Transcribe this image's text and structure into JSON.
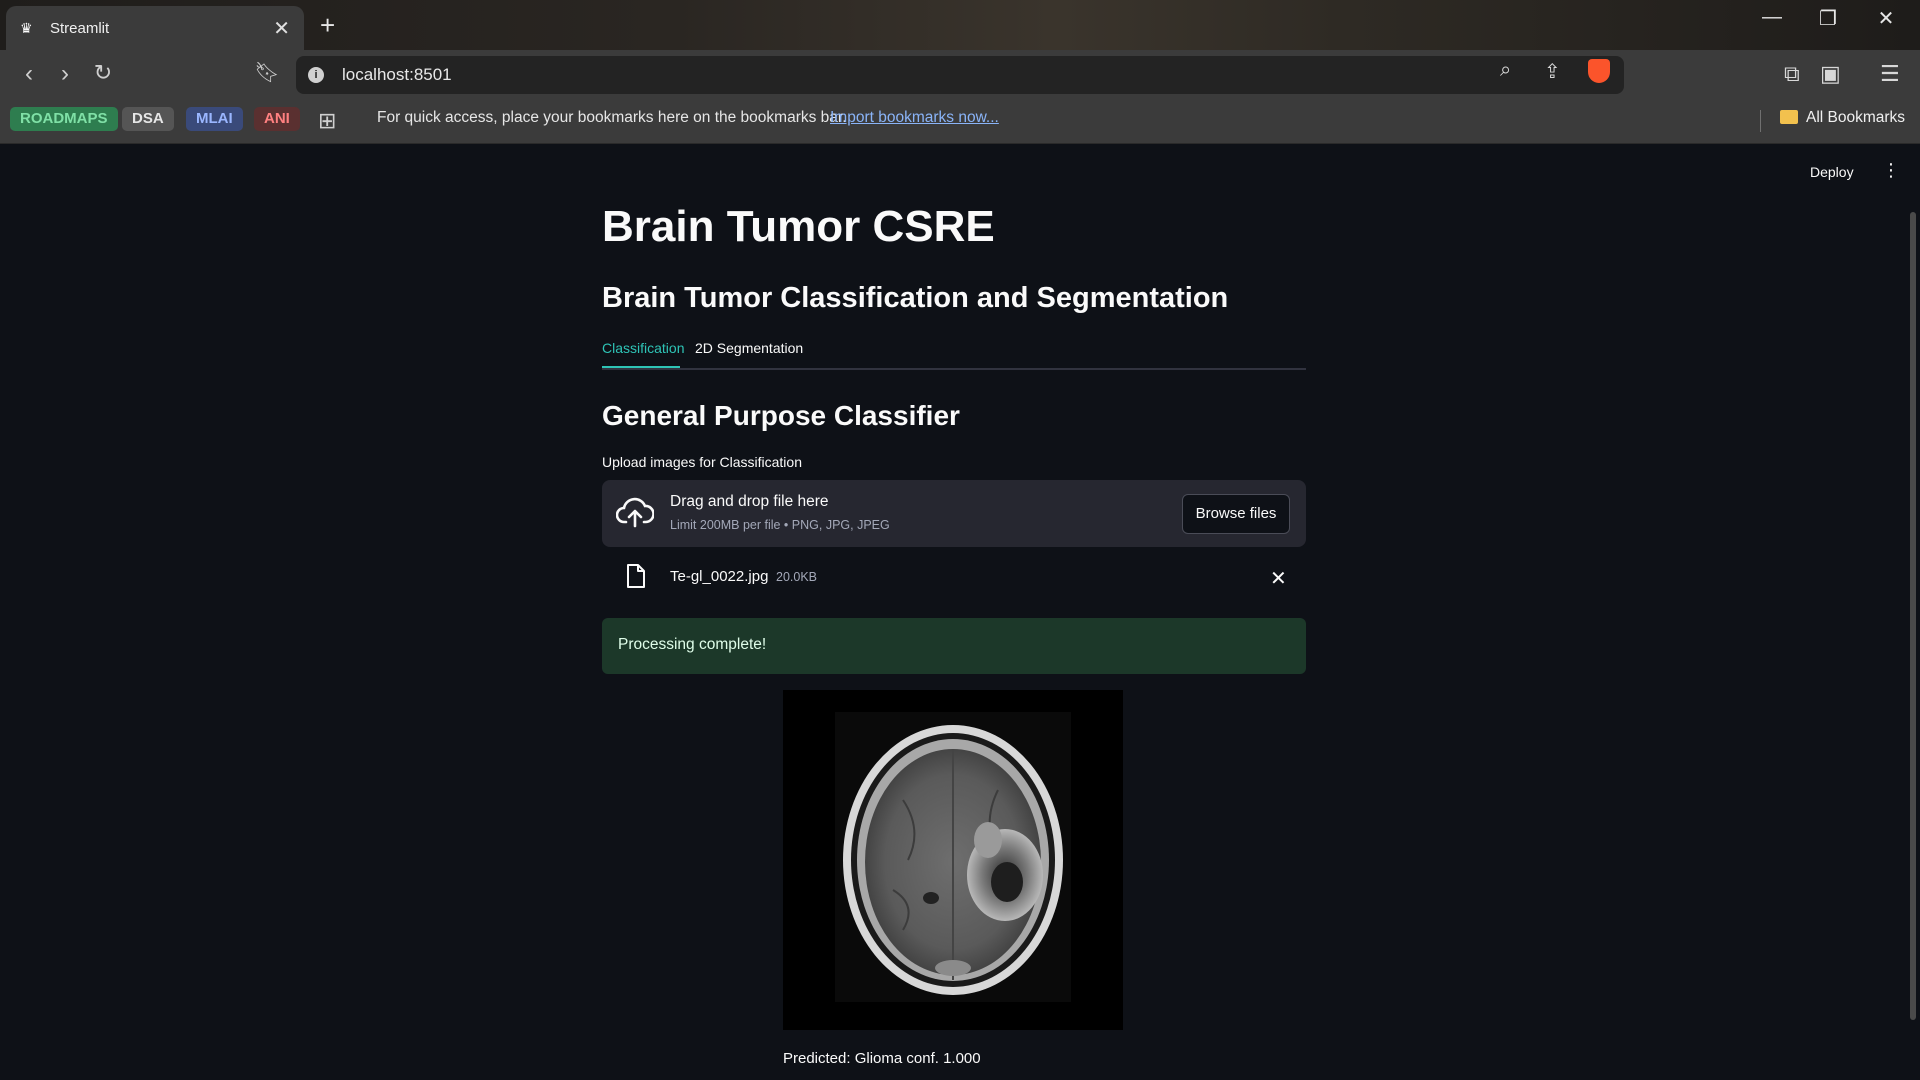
{
  "browser": {
    "tab_title": "Streamlit",
    "url": "localhost:8501",
    "bookmarks": [
      {
        "label": "ROADMAPS",
        "color": "#2e7d4f",
        "text_color": "#7fe0a6"
      },
      {
        "label": "DSA",
        "color": "#555555",
        "text_color": "#e6e6e6"
      },
      {
        "label": "MLAI",
        "color": "#3a4a7a",
        "text_color": "#9ab6ff"
      },
      {
        "label": "ANI",
        "color": "#5a3030",
        "text_color": "#ff8080"
      }
    ],
    "bookmarks_hint": "For quick access, place your bookmarks here on the bookmarks bar.",
    "import_link": "Import bookmarks now...",
    "all_bookmarks": "All Bookmarks"
  },
  "app": {
    "deploy_label": "Deploy",
    "title": "Brain Tumor CSRE",
    "subtitle": "Brain Tumor Classification and Segmentation",
    "tabs": [
      {
        "label": "Classification",
        "active": true
      },
      {
        "label": "2D Segmentation",
        "active": false
      }
    ],
    "section_title": "General Purpose Classifier",
    "uploader": {
      "label": "Upload images for Classification",
      "drop_text": "Drag and drop file here",
      "limit_text": "Limit 200MB per file • PNG, JPG, JPEG",
      "browse_label": "Browse files"
    },
    "uploaded_file": {
      "name": "Te-gl_0022.jpg",
      "size": "20.0KB"
    },
    "status": "Processing complete!",
    "prediction": "Predicted: Glioma conf. 1.000"
  },
  "colors": {
    "accent": "#2ec4b6",
    "success_bg": "#1c3829",
    "background": "#0e1117"
  }
}
